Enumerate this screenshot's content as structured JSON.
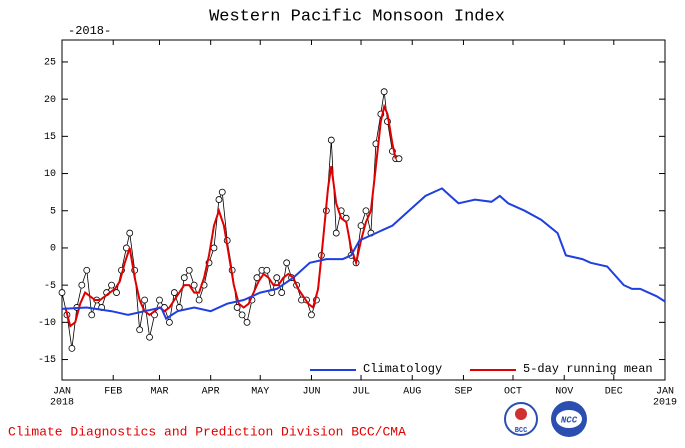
{
  "chart_data": {
    "type": "line",
    "title": "Western Pacific Monsoon Index",
    "subtitle": "-2018-",
    "footer": "Climate Diagnostics and Prediction Division   BCC/CMA",
    "xlim": [
      0,
      365
    ],
    "ylim": [
      -17.75,
      27.95
    ],
    "xticks": [
      {
        "value": 0,
        "label": "JAN"
      },
      {
        "value": 31,
        "label": "FEB"
      },
      {
        "value": 59,
        "label": "MAR"
      },
      {
        "value": 90,
        "label": "APR"
      },
      {
        "value": 120,
        "label": "MAY"
      },
      {
        "value": 151,
        "label": "JUN"
      },
      {
        "value": 181,
        "label": "JUL"
      },
      {
        "value": 212,
        "label": "AUG"
      },
      {
        "value": 243,
        "label": "SEP"
      },
      {
        "value": 273,
        "label": "OCT"
      },
      {
        "value": 304,
        "label": "NOV"
      },
      {
        "value": 334,
        "label": "DEC"
      },
      {
        "value": 365,
        "label": "JAN"
      }
    ],
    "year_labels": [
      {
        "value": 0,
        "label": "2018"
      },
      {
        "value": 365,
        "label": "2019"
      }
    ],
    "yticks": [
      -15,
      -10,
      -5,
      0,
      5,
      10,
      15,
      20,
      25
    ],
    "series": [
      {
        "color": "#000000",
        "markers": true,
        "x": [
          0,
          3,
          6,
          9,
          12,
          15,
          18,
          21,
          24,
          27,
          30,
          33,
          36,
          39,
          41,
          44,
          47,
          50,
          53,
          56,
          59,
          62,
          65,
          68,
          71,
          74,
          77,
          80,
          83,
          86,
          89,
          92,
          95,
          97,
          100,
          103,
          106,
          109,
          112,
          115,
          118,
          121,
          124,
          127,
          130,
          133,
          136,
          139,
          142,
          145,
          148,
          151,
          154,
          157,
          160,
          163,
          166,
          169,
          172,
          175,
          178,
          181,
          184,
          187,
          190,
          193,
          195,
          197,
          200,
          202,
          204
        ],
        "values": [
          -6,
          -9,
          -13.5,
          -8,
          -5,
          -3,
          -9,
          -7,
          -8,
          -6,
          -5,
          -6,
          -3,
          0,
          2,
          -3,
          -11,
          -7,
          -12,
          -9,
          -7,
          -8,
          -10,
          -6,
          -8,
          -4,
          -3,
          -5,
          -7,
          -5,
          -2,
          0,
          6.5,
          7.5,
          1,
          -3,
          -8,
          -9,
          -10,
          -7,
          -4,
          -3,
          -3,
          -6,
          -4,
          -6,
          -2,
          -4,
          -5,
          -7,
          -7,
          -9,
          -7,
          -1,
          5,
          14.5,
          2,
          5,
          4,
          -1,
          -2,
          3,
          5,
          2,
          14,
          18,
          21,
          17,
          13,
          12,
          12
        ]
      },
      {
        "name": "5-day running mean",
        "color": "#e00000",
        "x": [
          2,
          5,
          8,
          11,
          14,
          17,
          20,
          23,
          26,
          29,
          32,
          35,
          38,
          41,
          44,
          47,
          50,
          53,
          56,
          59,
          62,
          65,
          68,
          71,
          74,
          77,
          80,
          83,
          86,
          89,
          92,
          95,
          98,
          101,
          104,
          107,
          110,
          113,
          116,
          119,
          122,
          125,
          128,
          131,
          134,
          137,
          140,
          143,
          146,
          149,
          152,
          155,
          158,
          161,
          163,
          166,
          169,
          172,
          175,
          178,
          181,
          184,
          187,
          190,
          193,
          195,
          197,
          200,
          202
        ],
        "values": [
          -8,
          -10.5,
          -10,
          -7.5,
          -6,
          -6.5,
          -7,
          -7,
          -6.5,
          -6,
          -5.5,
          -4.5,
          -2,
          0,
          -4,
          -7,
          -8.5,
          -9,
          -8.5,
          -8,
          -8.5,
          -8,
          -7,
          -6,
          -5,
          -5,
          -6,
          -6,
          -4,
          -1,
          3,
          5,
          3,
          -1,
          -5,
          -7.5,
          -8,
          -7.5,
          -6,
          -4.5,
          -3.5,
          -4,
          -5,
          -5,
          -4,
          -3.5,
          -4,
          -5.5,
          -6.5,
          -7.5,
          -8,
          -5.5,
          1,
          8,
          11,
          6,
          4,
          3.5,
          0,
          -2,
          1,
          3.5,
          5,
          11,
          17,
          19,
          18,
          14,
          12
        ]
      },
      {
        "name": "Climatology",
        "color": "#1f3fe0",
        "x": [
          0,
          15,
          30,
          40,
          50,
          60,
          63,
          70,
          80,
          90,
          100,
          110,
          120,
          130,
          140,
          150,
          160,
          170,
          175,
          180,
          190,
          200,
          210,
          220,
          230,
          235,
          240,
          250,
          260,
          265,
          270,
          280,
          290,
          300,
          305,
          315,
          320,
          330,
          340,
          345,
          350,
          360,
          365
        ],
        "values": [
          -8.2,
          -8,
          -8.5,
          -9,
          -8.5,
          -8,
          -9.5,
          -8.5,
          -8,
          -8.5,
          -7.5,
          -7,
          -6,
          -5.5,
          -4,
          -2,
          -1.5,
          -1.5,
          -1,
          1,
          2,
          3,
          5,
          7,
          8,
          7,
          6,
          6.5,
          6.2,
          7,
          6,
          5,
          3.8,
          2,
          -1,
          -1.5,
          -2,
          -2.5,
          -5,
          -5.5,
          -5.5,
          -6.5,
          -7.2
        ]
      }
    ]
  }
}
